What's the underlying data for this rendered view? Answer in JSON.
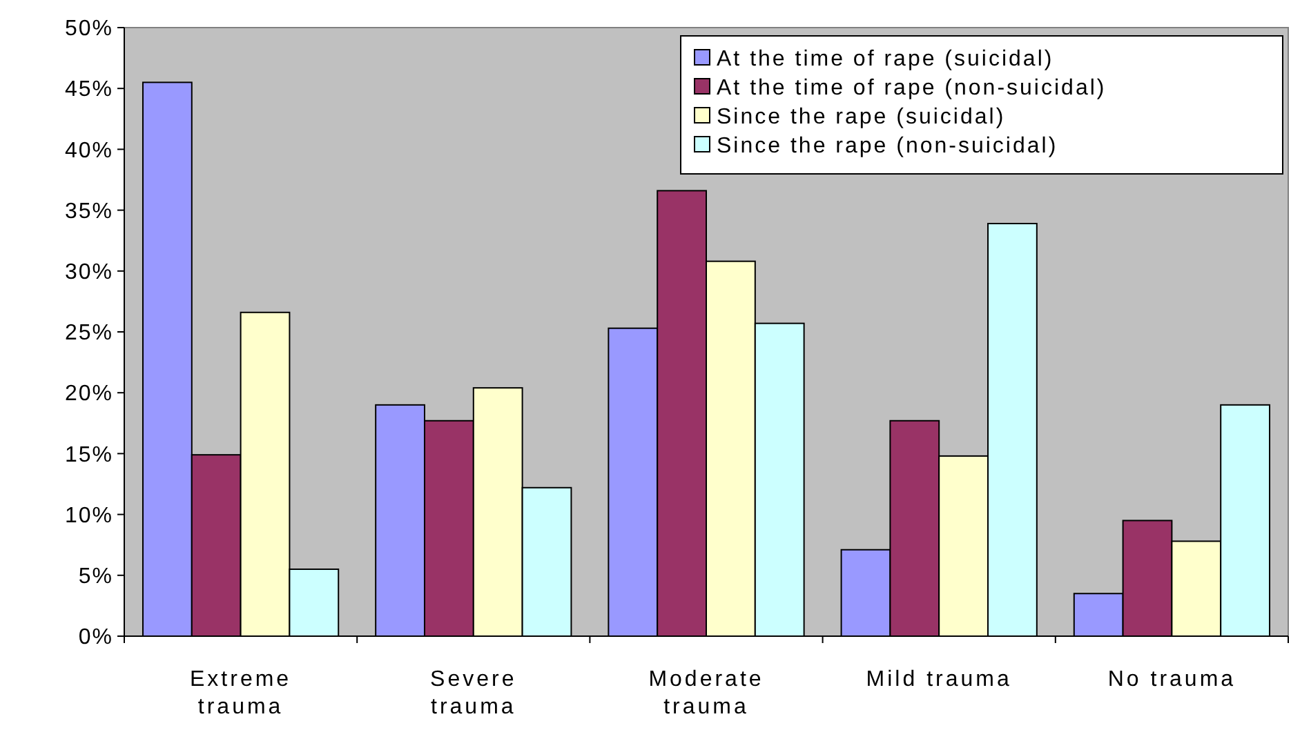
{
  "chart_data": {
    "type": "bar",
    "categories": [
      "Extreme trauma",
      "Severe trauma",
      "Moderate trauma",
      "Mild trauma",
      "No trauma"
    ],
    "series": [
      {
        "name": "At the time of rape (suicidal)",
        "color": "#9999ff",
        "values": [
          45.5,
          19,
          25.3,
          7.1,
          3.5
        ]
      },
      {
        "name": "At the time of rape (non-suicidal)",
        "color": "#993366",
        "values": [
          14.9,
          17.7,
          36.6,
          17.7,
          9.5
        ]
      },
      {
        "name": "Since the rape (suicidal)",
        "color": "#ffffcc",
        "values": [
          26.6,
          20.4,
          30.8,
          14.8,
          7.8
        ]
      },
      {
        "name": "Since the rape (non-suicidal)",
        "color": "#ccffff",
        "values": [
          5.5,
          12.2,
          25.7,
          33.9,
          19
        ]
      }
    ],
    "ylim": [
      0,
      50
    ],
    "yticks": [
      {
        "value": 0,
        "label": "0%"
      },
      {
        "value": 5,
        "label": "5%"
      },
      {
        "value": 10,
        "label": "10%"
      },
      {
        "value": 15,
        "label": "15%"
      },
      {
        "value": 20,
        "label": "20%"
      },
      {
        "value": 25,
        "label": "25%"
      },
      {
        "value": 30,
        "label": "30%"
      },
      {
        "value": 35,
        "label": "35%"
      },
      {
        "value": 40,
        "label": "40%"
      },
      {
        "value": 45,
        "label": "45%"
      },
      {
        "value": 50,
        "label": "50%"
      }
    ],
    "grid": false,
    "legend": "top right"
  }
}
